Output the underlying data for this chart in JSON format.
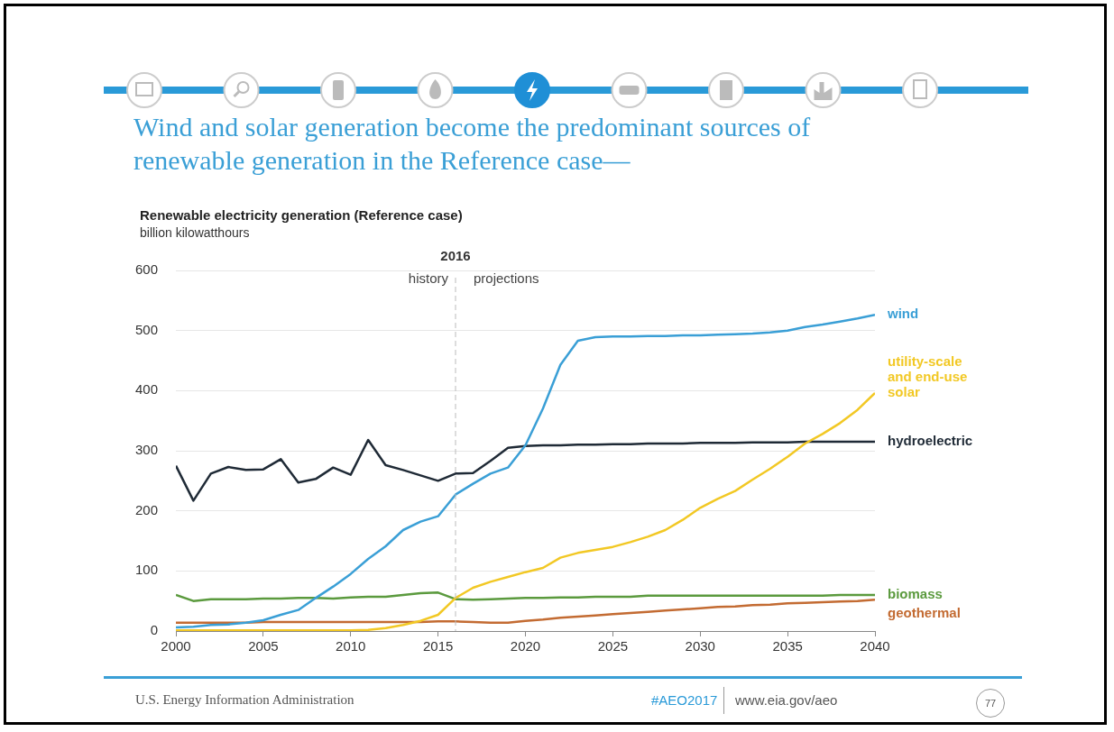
{
  "chart_data": {
    "type": "line",
    "title": "Wind and solar generation become the predominant sources of renewable generation in the Reference case—",
    "subtitle": "Renewable electricity generation (Reference case)",
    "ylabel": "billion kilowatthours",
    "x": [
      2000,
      2001,
      2002,
      2003,
      2004,
      2005,
      2006,
      2007,
      2008,
      2009,
      2010,
      2011,
      2012,
      2013,
      2014,
      2015,
      2016,
      2017,
      2018,
      2019,
      2020,
      2021,
      2022,
      2023,
      2024,
      2025,
      2026,
      2027,
      2028,
      2029,
      2030,
      2031,
      2032,
      2033,
      2034,
      2035,
      2036,
      2037,
      2038,
      2039,
      2040
    ],
    "series": [
      {
        "name": "wind",
        "color": "#3a9fd6",
        "values": [
          6,
          7,
          10,
          11,
          14,
          18,
          27,
          35,
          55,
          74,
          95,
          120,
          141,
          168,
          182,
          191,
          227,
          245,
          262,
          272,
          309,
          370,
          443,
          483,
          489,
          490,
          490,
          491,
          491,
          492,
          492,
          493,
          494,
          495,
          497,
          500,
          506,
          510,
          515,
          520,
          526
        ]
      },
      {
        "name": "utility-scale and end-use solar",
        "color": "#f2c824",
        "values": [
          1,
          1,
          1,
          1,
          1,
          1,
          1,
          1,
          1,
          1,
          1,
          2,
          5,
          10,
          17,
          27,
          55,
          72,
          82,
          90,
          98,
          105,
          122,
          130,
          135,
          140,
          148,
          157,
          168,
          185,
          205,
          220,
          233,
          252,
          270,
          290,
          312,
          328,
          346,
          368,
          396
        ]
      },
      {
        "name": "hydroelectric",
        "color": "#1f2a36",
        "values": [
          275,
          217,
          262,
          273,
          268,
          269,
          286,
          247,
          253,
          272,
          260,
          318,
          276,
          268,
          259,
          250,
          262,
          263,
          283,
          305,
          308,
          309,
          309,
          310,
          310,
          311,
          311,
          312,
          312,
          312,
          313,
          313,
          313,
          314,
          314,
          314,
          315,
          315,
          315,
          315,
          315
        ]
      },
      {
        "name": "biomass",
        "color": "#5b9a3e",
        "values": [
          60,
          50,
          53,
          53,
          53,
          54,
          54,
          55,
          55,
          54,
          56,
          57,
          57,
          60,
          63,
          64,
          53,
          52,
          53,
          54,
          55,
          55,
          56,
          56,
          57,
          57,
          57,
          59,
          59,
          59,
          59,
          59,
          59,
          59,
          59,
          59,
          59,
          59,
          60,
          60,
          60
        ]
      },
      {
        "name": "geothermal",
        "color": "#c36b32",
        "values": [
          14,
          14,
          14,
          14,
          14,
          15,
          15,
          15,
          15,
          15,
          15,
          15,
          15,
          15,
          15,
          16,
          16,
          15,
          14,
          14,
          17,
          19,
          22,
          24,
          26,
          28,
          30,
          32,
          34,
          36,
          38,
          40,
          41,
          43,
          44,
          46,
          47,
          48,
          49,
          50,
          52
        ]
      }
    ],
    "xlim": [
      2000,
      2040
    ],
    "xticks": [
      2000,
      2005,
      2010,
      2015,
      2020,
      2025,
      2030,
      2035,
      2040
    ],
    "ylim": [
      0,
      600
    ],
    "yticks": [
      0,
      100,
      200,
      300,
      400,
      500,
      600
    ],
    "grid": "y",
    "legend": false,
    "marker": "none",
    "ref_lines": [
      {
        "axis": "x",
        "value": 2016,
        "label": "2016",
        "color": "#bbbbbb",
        "line_style": "dashed"
      }
    ],
    "annotations": [
      "history",
      "projections",
      "U.S. Energy Information Administration",
      "#AEO2017",
      "www.eia.gov/aeo",
      "77"
    ]
  }
}
